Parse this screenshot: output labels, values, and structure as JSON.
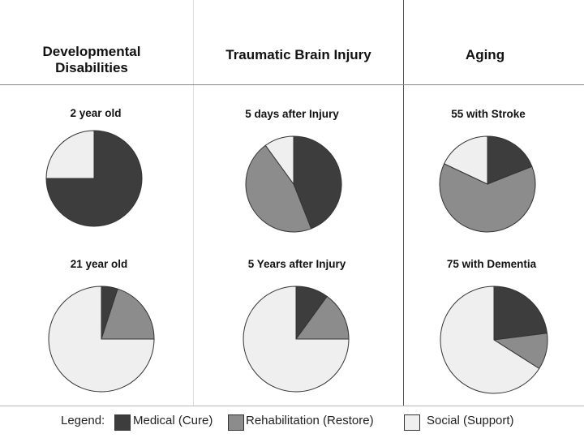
{
  "columns": [
    {
      "title": "Developmental Disabilities"
    },
    {
      "title": "Traumatic Brain Injury"
    },
    {
      "title": "Aging"
    }
  ],
  "legend": {
    "label": "Legend:",
    "items": [
      {
        "name": "Medical (Cure)",
        "color": "#3d3d3d"
      },
      {
        "name": "Rehabilitation (Restore)",
        "color": "#8c8c8c"
      },
      {
        "name": "Social (Support)",
        "color": "#efefef"
      }
    ]
  },
  "chart_data": [
    {
      "type": "pie",
      "title": "2 year old",
      "labels": [
        "Medical (Cure)",
        "Rehabilitation (Restore)",
        "Social (Support)"
      ],
      "values": [
        75,
        0,
        25
      ]
    },
    {
      "type": "pie",
      "title": "5 days after Injury",
      "labels": [
        "Medical (Cure)",
        "Rehabilitation (Restore)",
        "Social (Support)"
      ],
      "values": [
        44,
        46,
        10
      ]
    },
    {
      "type": "pie",
      "title": "55 with Stroke",
      "labels": [
        "Medical (Cure)",
        "Rehabilitation (Restore)",
        "Social (Support)"
      ],
      "values": [
        19,
        63,
        18
      ]
    },
    {
      "type": "pie",
      "title": "21 year old",
      "labels": [
        "Medical (Cure)",
        "Rehabilitation (Restore)",
        "Social (Support)"
      ],
      "values": [
        5,
        20,
        75
      ]
    },
    {
      "type": "pie",
      "title": "5 Years after Injury",
      "labels": [
        "Medical (Cure)",
        "Rehabilitation (Restore)",
        "Social (Support)"
      ],
      "values": [
        10,
        15,
        75
      ]
    },
    {
      "type": "pie",
      "title": "75 with Dementia",
      "labels": [
        "Medical (Cure)",
        "Rehabilitation (Restore)",
        "Social (Support)"
      ],
      "values": [
        23,
        11,
        66
      ]
    }
  ]
}
